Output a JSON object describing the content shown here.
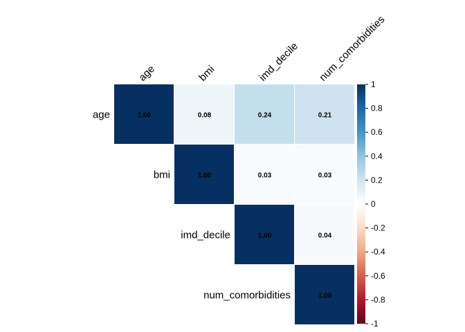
{
  "chart_data": {
    "type": "heatmap",
    "variables": [
      "age",
      "bmi",
      "imd_decile",
      "num_comorbidities"
    ],
    "matrix": [
      [
        1.0,
        0.08,
        0.24,
        0.21
      ],
      [
        null,
        1.0,
        0.03,
        0.03
      ],
      [
        null,
        null,
        1.0,
        0.04
      ],
      [
        null,
        null,
        null,
        1.0
      ]
    ],
    "shape": "upper-triangle",
    "value_range": [
      -1,
      1
    ],
    "colorbar": {
      "ticks": [
        "1",
        "0.8",
        "0.6",
        "0.4",
        "0.2",
        "0",
        "-0.2",
        "-0.4",
        "-0.6",
        "-0.8",
        "-1"
      ],
      "position": "right",
      "colors": {
        "neg1": "#67001f",
        "neg08": "#b2182b",
        "neg06": "#d6604d",
        "neg04": "#f4a582",
        "neg02": "#fddbc7",
        "zero": "#ffffff",
        "pos02": "#d1e5f0",
        "pos04": "#92c5de",
        "pos06": "#4393c3",
        "pos08": "#2166ac",
        "pos1": "#053061"
      }
    },
    "grid": false
  }
}
